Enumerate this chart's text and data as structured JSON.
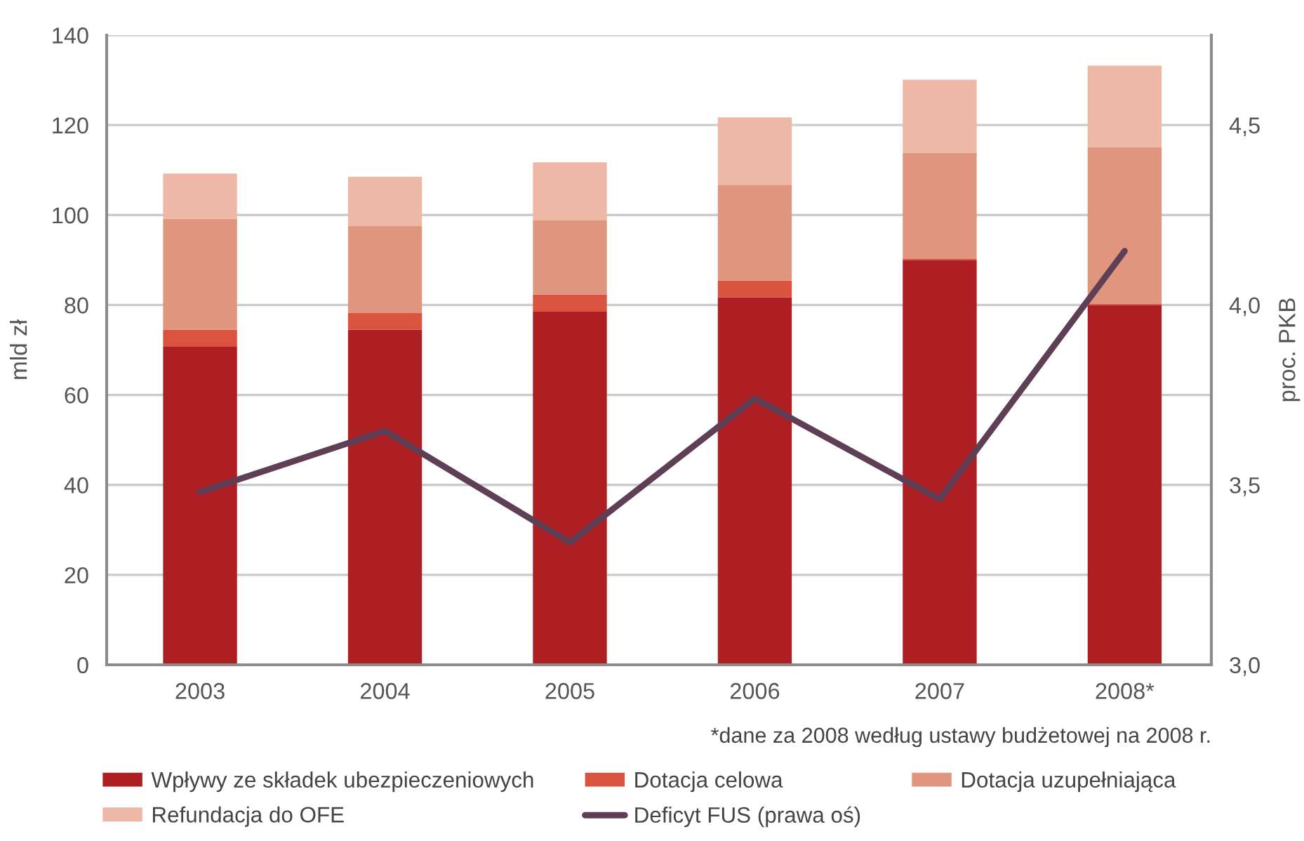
{
  "chart_data": {
    "type": "bar",
    "stacked": true,
    "categories": [
      "2003",
      "2004",
      "2005",
      "2006",
      "2007",
      "2008*"
    ],
    "series": [
      {
        "name": "Wpływy ze składek ubezpieczeniowych",
        "color": "#ae1f24",
        "values": [
          70.7,
          74.5,
          78.5,
          81.7,
          89.9,
          80.0
        ]
      },
      {
        "name": "Dotacja celowa",
        "color": "#d9533e",
        "values": [
          3.8,
          3.7,
          3.8,
          3.7,
          0.3,
          0.3
        ]
      },
      {
        "name": "Dotacja uzupełniająca",
        "color": "#df957e",
        "values": [
          24.7,
          19.4,
          16.5,
          21.3,
          23.6,
          34.8
        ]
      },
      {
        "name": "Refundacja do OFE",
        "color": "#eeb8a6",
        "values": [
          10.0,
          10.9,
          12.9,
          15.0,
          16.3,
          18.1
        ]
      },
      {
        "name": "Deficyt FUS (prawa oś)",
        "color": "#5e3f55",
        "type": "line",
        "axis": "y2",
        "values": [
          3.48,
          3.65,
          3.34,
          3.74,
          3.46,
          4.15
        ]
      }
    ],
    "ylabel": "mld zł",
    "y2label": "proc. PKB",
    "ylim": [
      0,
      140
    ],
    "yticks": [
      0,
      20,
      40,
      60,
      80,
      100,
      120,
      140
    ],
    "y2lim": [
      3.0,
      4.75
    ],
    "y2ticks": [
      {
        "value": 3.0,
        "label": "3,0"
      },
      {
        "value": 3.5,
        "label": "3,5"
      },
      {
        "value": 4.0,
        "label": "4,0"
      },
      {
        "value": 4.5,
        "label": "4,5"
      }
    ],
    "grid": "y",
    "legend": "bottom",
    "line_style": "solid",
    "annotations": [
      "*dane za 2008 według ustawy budżetowej na 2008 r."
    ]
  }
}
